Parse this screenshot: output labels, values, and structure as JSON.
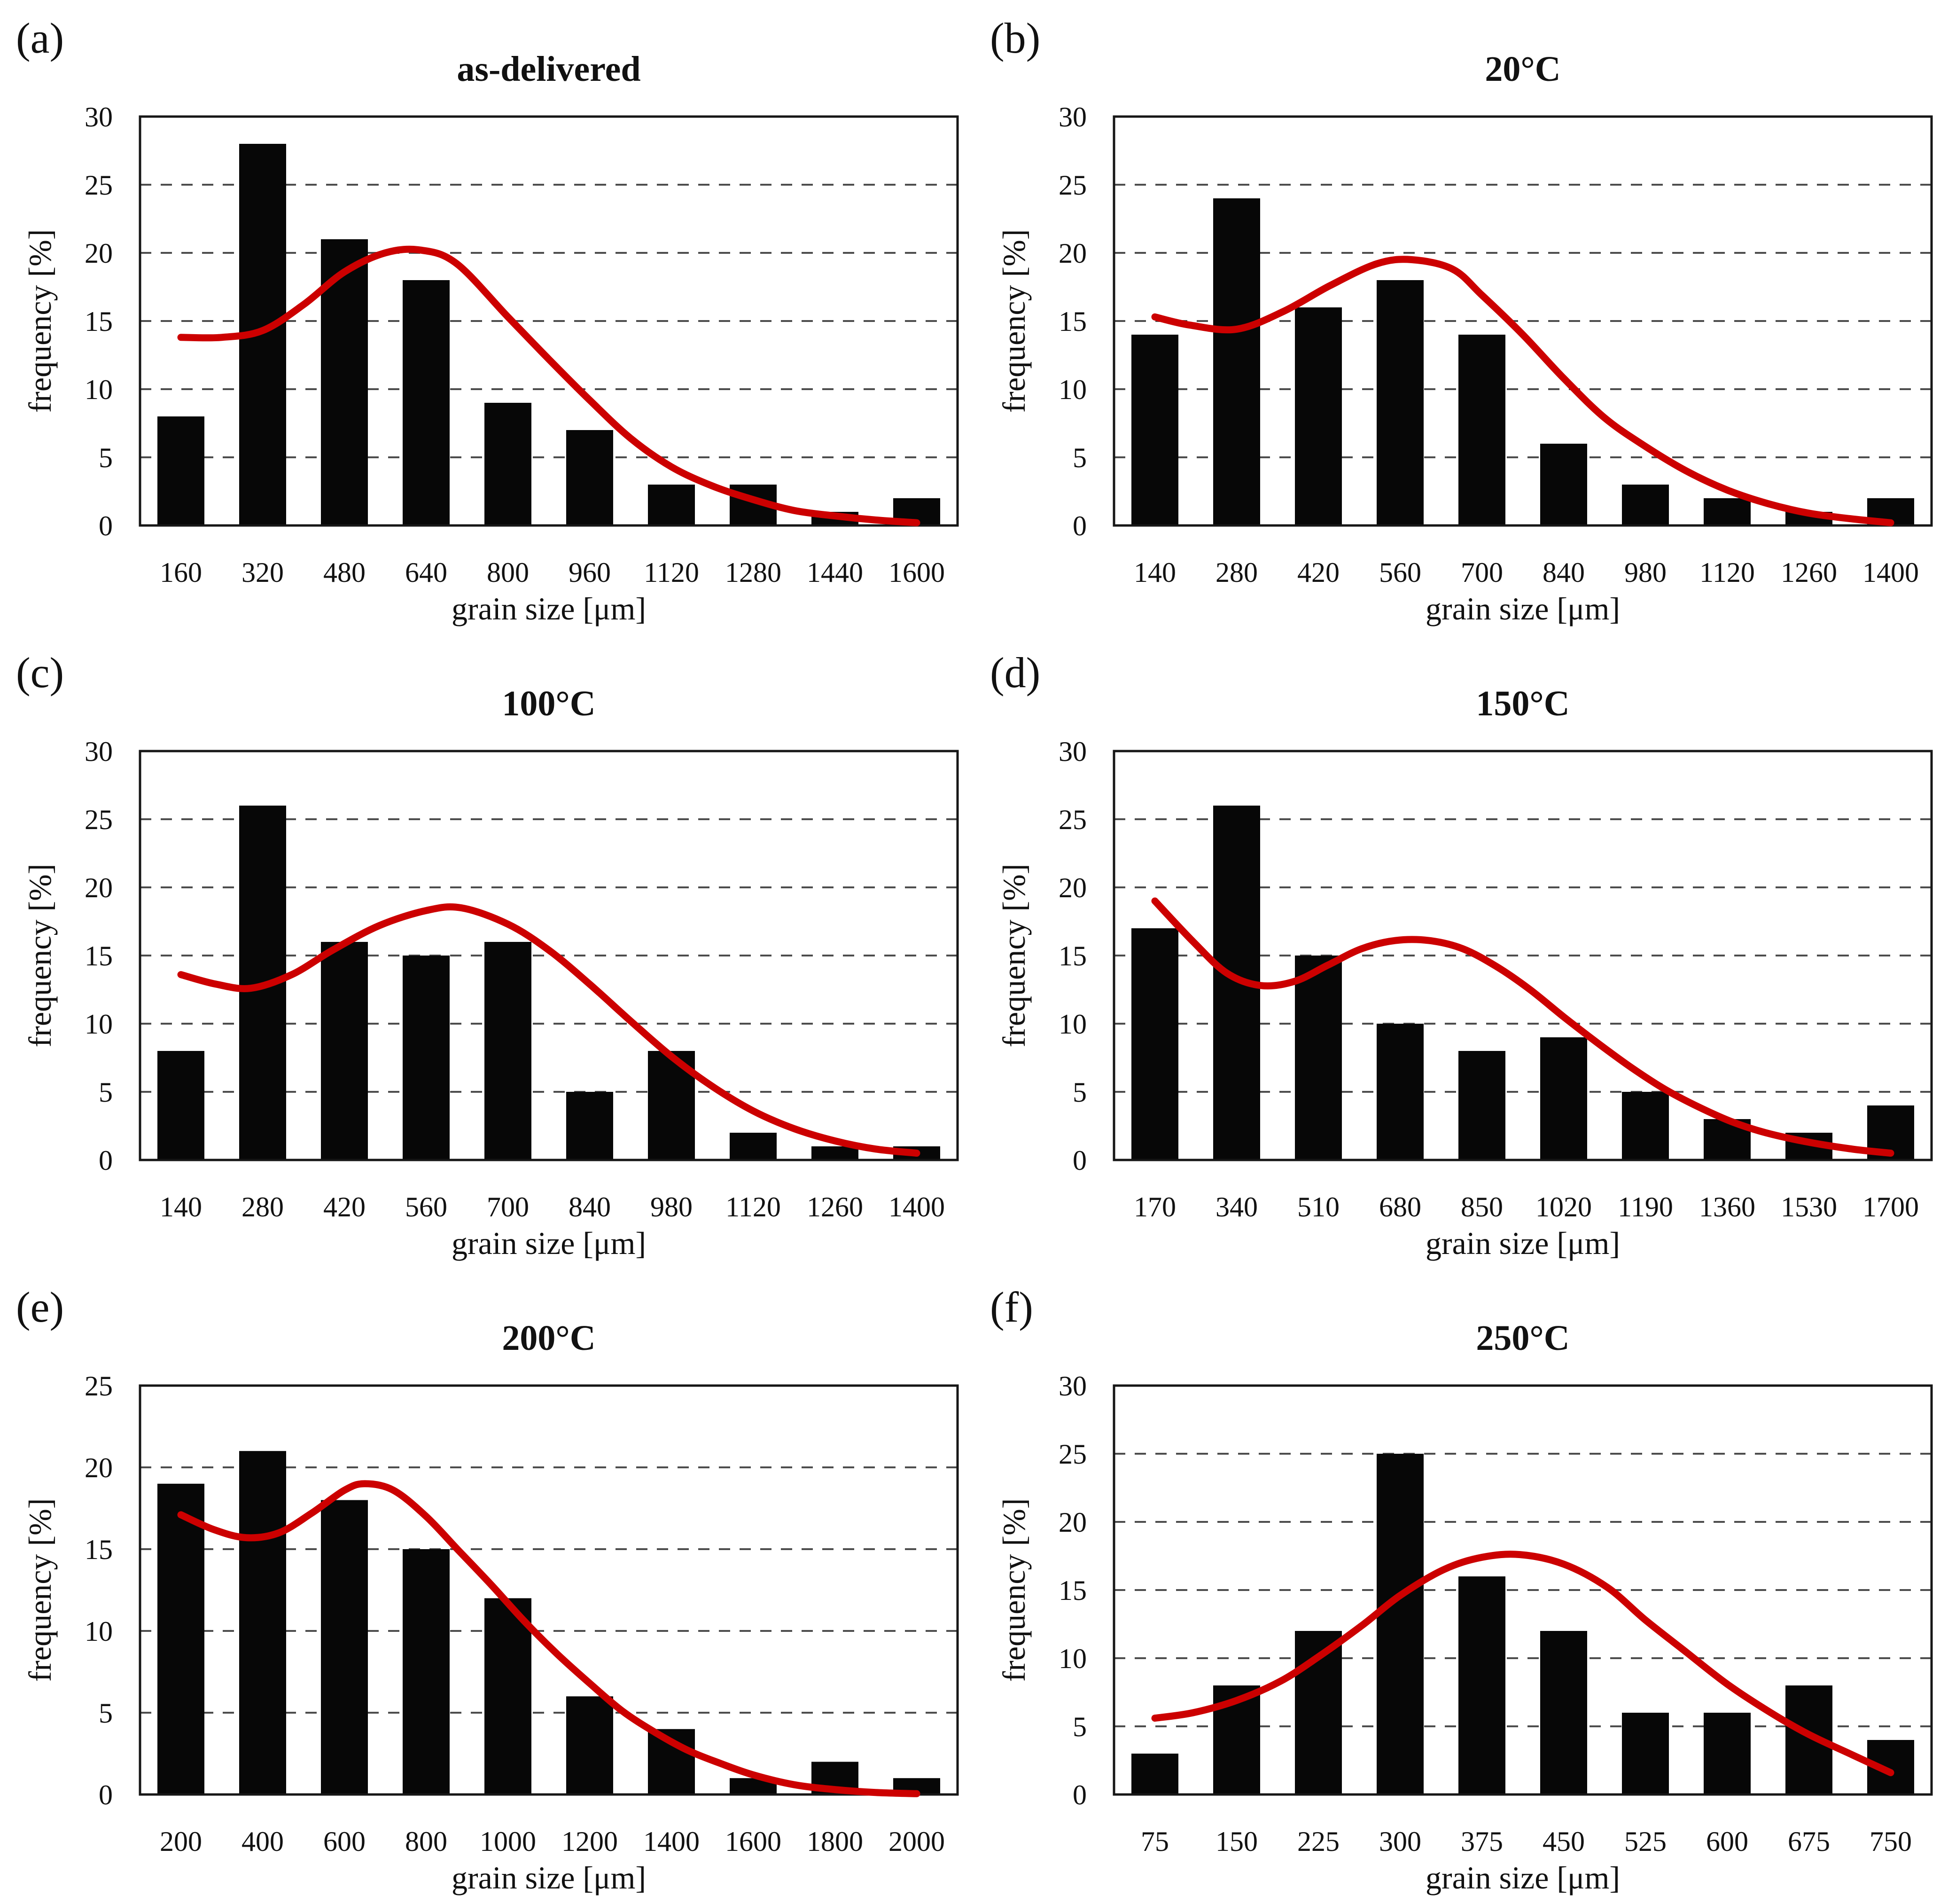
{
  "figure": {
    "xlabel": "grain size [μm]",
    "ylabel": "frequency [%]"
  },
  "colors": {
    "bar": "#070707",
    "curve": "#cc0000",
    "grid": "#4d4d4d",
    "frame": "#161616",
    "text": "#111111"
  },
  "chart_data": [
    {
      "panel": "(a)",
      "title": "as-delivered",
      "type": "bar",
      "xlabel": "grain size [μm]",
      "ylabel": "frequency [%]",
      "ylim": [
        0,
        30
      ],
      "ytick_step": 5,
      "yticks": [
        0,
        5,
        10,
        15,
        20,
        25,
        30
      ],
      "grid": "dashed-horizontal",
      "legend": "none",
      "categories": [
        160,
        320,
        480,
        640,
        800,
        960,
        1120,
        1280,
        1440,
        1600
      ],
      "values": [
        8,
        28,
        21,
        18,
        9,
        7,
        3,
        3,
        1,
        2
      ],
      "curve_color": "#cc0000",
      "curve": [
        [
          160,
          13.8
        ],
        [
          240,
          13.8
        ],
        [
          320,
          14.3
        ],
        [
          400,
          16.2
        ],
        [
          480,
          18.6
        ],
        [
          560,
          20.0
        ],
        [
          630,
          20.2
        ],
        [
          700,
          19.2
        ],
        [
          800,
          15.3
        ],
        [
          880,
          12.2
        ],
        [
          960,
          9.2
        ],
        [
          1040,
          6.4
        ],
        [
          1120,
          4.3
        ],
        [
          1200,
          2.9
        ],
        [
          1280,
          1.9
        ],
        [
          1360,
          1.1
        ],
        [
          1440,
          0.7
        ],
        [
          1520,
          0.4
        ],
        [
          1600,
          0.2
        ]
      ]
    },
    {
      "panel": "(b)",
      "title": "20°C",
      "type": "bar",
      "xlabel": "grain size [μm]",
      "ylabel": "frequency [%]",
      "ylim": [
        0,
        30
      ],
      "ytick_step": 5,
      "yticks": [
        0,
        5,
        10,
        15,
        20,
        25,
        30
      ],
      "grid": "dashed-horizontal",
      "legend": "none",
      "categories": [
        140,
        280,
        420,
        560,
        700,
        840,
        980,
        1120,
        1260,
        1400
      ],
      "values": [
        14,
        24,
        16,
        18,
        14,
        6,
        3,
        2,
        1,
        2
      ],
      "curve_color": "#cc0000",
      "curve": [
        [
          140,
          15.3
        ],
        [
          200,
          14.7
        ],
        [
          280,
          14.4
        ],
        [
          360,
          15.7
        ],
        [
          440,
          17.6
        ],
        [
          520,
          19.2
        ],
        [
          580,
          19.5
        ],
        [
          650,
          18.8
        ],
        [
          700,
          16.9
        ],
        [
          770,
          14.0
        ],
        [
          840,
          10.8
        ],
        [
          910,
          7.9
        ],
        [
          980,
          5.8
        ],
        [
          1050,
          4.0
        ],
        [
          1120,
          2.6
        ],
        [
          1190,
          1.6
        ],
        [
          1260,
          0.9
        ],
        [
          1330,
          0.5
        ],
        [
          1400,
          0.2
        ]
      ]
    },
    {
      "panel": "(c)",
      "title": "100°C",
      "type": "bar",
      "xlabel": "grain size [μm]",
      "ylabel": "frequency [%]",
      "ylim": [
        0,
        30
      ],
      "ytick_step": 5,
      "yticks": [
        0,
        5,
        10,
        15,
        20,
        25,
        30
      ],
      "grid": "dashed-horizontal",
      "legend": "none",
      "categories": [
        140,
        280,
        420,
        560,
        700,
        840,
        980,
        1120,
        1260,
        1400
      ],
      "values": [
        8,
        26,
        16,
        15,
        16,
        5,
        8,
        2,
        1,
        1
      ],
      "curve_color": "#cc0000",
      "curve": [
        [
          140,
          13.6
        ],
        [
          200,
          12.9
        ],
        [
          260,
          12.6
        ],
        [
          330,
          13.6
        ],
        [
          400,
          15.4
        ],
        [
          480,
          17.2
        ],
        [
          560,
          18.3
        ],
        [
          620,
          18.5
        ],
        [
          700,
          17.3
        ],
        [
          770,
          15.4
        ],
        [
          840,
          12.9
        ],
        [
          910,
          10.2
        ],
        [
          980,
          7.6
        ],
        [
          1050,
          5.4
        ],
        [
          1120,
          3.6
        ],
        [
          1190,
          2.3
        ],
        [
          1260,
          1.4
        ],
        [
          1330,
          0.8
        ],
        [
          1400,
          0.5
        ]
      ]
    },
    {
      "panel": "(d)",
      "title": "150°C",
      "type": "bar",
      "xlabel": "grain size [μm]",
      "ylabel": "frequency [%]",
      "ylim": [
        0,
        30
      ],
      "ytick_step": 5,
      "yticks": [
        0,
        5,
        10,
        15,
        20,
        25,
        30
      ],
      "grid": "dashed-horizontal",
      "legend": "none",
      "categories": [
        170,
        340,
        510,
        680,
        850,
        1020,
        1190,
        1360,
        1530,
        1700
      ],
      "values": [
        17,
        26,
        15,
        10,
        8,
        9,
        5,
        3,
        2,
        4
      ],
      "curve_color": "#cc0000",
      "curve": [
        [
          170,
          19.0
        ],
        [
          250,
          16.0
        ],
        [
          320,
          13.7
        ],
        [
          390,
          12.8
        ],
        [
          460,
          13.1
        ],
        [
          530,
          14.3
        ],
        [
          600,
          15.5
        ],
        [
          670,
          16.1
        ],
        [
          740,
          16.1
        ],
        [
          810,
          15.5
        ],
        [
          880,
          14.2
        ],
        [
          950,
          12.5
        ],
        [
          1020,
          10.5
        ],
        [
          1090,
          8.6
        ],
        [
          1160,
          6.8
        ],
        [
          1230,
          5.2
        ],
        [
          1300,
          3.9
        ],
        [
          1370,
          2.8
        ],
        [
          1440,
          2.0
        ],
        [
          1530,
          1.3
        ],
        [
          1620,
          0.8
        ],
        [
          1700,
          0.5
        ]
      ]
    },
    {
      "panel": "(e)",
      "title": "200°C",
      "type": "bar",
      "xlabel": "grain size [μm]",
      "ylabel": "frequency [%]",
      "ylim": [
        0,
        25
      ],
      "ytick_step": 5,
      "yticks": [
        0,
        5,
        10,
        15,
        20,
        25
      ],
      "grid": "dashed-horizontal",
      "legend": "none",
      "categories": [
        200,
        400,
        600,
        800,
        1000,
        1200,
        1400,
        1600,
        1800,
        2000
      ],
      "values": [
        19,
        21,
        18,
        15,
        12,
        6,
        4,
        1,
        2,
        1
      ],
      "curve_color": "#cc0000",
      "curve": [
        [
          200,
          17.1
        ],
        [
          280,
          16.2
        ],
        [
          360,
          15.7
        ],
        [
          440,
          16.0
        ],
        [
          520,
          17.2
        ],
        [
          600,
          18.6
        ],
        [
          650,
          19.0
        ],
        [
          720,
          18.6
        ],
        [
          800,
          17.0
        ],
        [
          880,
          14.9
        ],
        [
          960,
          12.8
        ],
        [
          1040,
          10.6
        ],
        [
          1120,
          8.6
        ],
        [
          1200,
          6.8
        ],
        [
          1280,
          5.1
        ],
        [
          1360,
          3.8
        ],
        [
          1440,
          2.7
        ],
        [
          1520,
          1.9
        ],
        [
          1600,
          1.2
        ],
        [
          1700,
          0.6
        ],
        [
          1800,
          0.3
        ],
        [
          1900,
          0.12
        ],
        [
          2000,
          0.05
        ]
      ]
    },
    {
      "panel": "(f)",
      "title": "250°C",
      "type": "bar",
      "xlabel": "grain size [μm]",
      "ylabel": "frequency [%]",
      "ylim": [
        0,
        30
      ],
      "ytick_step": 5,
      "yticks": [
        0,
        5,
        10,
        15,
        20,
        25,
        30
      ],
      "grid": "dashed-horizontal",
      "legend": "none",
      "categories": [
        75,
        150,
        225,
        300,
        375,
        450,
        525,
        600,
        675,
        750
      ],
      "values": [
        3,
        8,
        12,
        25,
        16,
        12,
        6,
        6,
        8,
        4
      ],
      "curve_color": "#cc0000",
      "curve": [
        [
          75,
          5.6
        ],
        [
          110,
          6.0
        ],
        [
          150,
          6.9
        ],
        [
          190,
          8.3
        ],
        [
          225,
          10.1
        ],
        [
          265,
          12.4
        ],
        [
          300,
          14.6
        ],
        [
          340,
          16.5
        ],
        [
          375,
          17.4
        ],
        [
          410,
          17.6
        ],
        [
          450,
          16.9
        ],
        [
          490,
          15.2
        ],
        [
          525,
          12.8
        ],
        [
          560,
          10.6
        ],
        [
          600,
          8.1
        ],
        [
          640,
          6.0
        ],
        [
          675,
          4.4
        ],
        [
          715,
          2.9
        ],
        [
          750,
          1.6
        ]
      ]
    }
  ]
}
